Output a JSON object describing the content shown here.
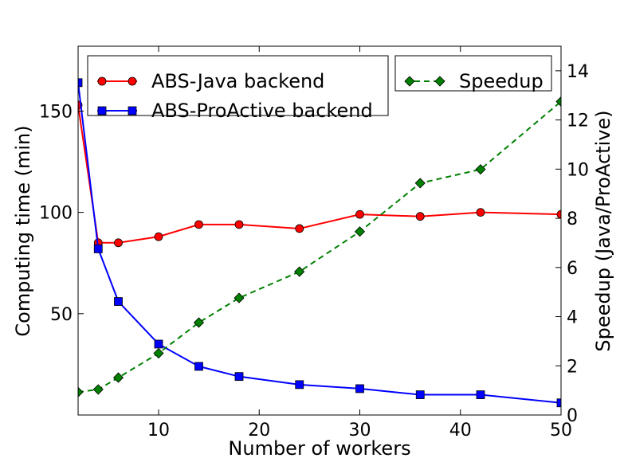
{
  "chart_data": {
    "type": "line",
    "xlabel": "Number of workers",
    "ylabel_left": "Computing time (min)",
    "ylabel_right": "Speedup (Java/ProActive)",
    "xlim": [
      2,
      50
    ],
    "ylim_left": [
      0,
      182
    ],
    "ylim_right": [
      0,
      15
    ],
    "xticks": [
      10,
      20,
      30,
      40,
      50
    ],
    "yticks_left": [
      50,
      100,
      150
    ],
    "yticks_right": [
      0,
      2,
      4,
      6,
      8,
      10,
      12,
      14
    ],
    "grid": false,
    "x": [
      2,
      4,
      6,
      10,
      14,
      18,
      24,
      30,
      36,
      42,
      50
    ],
    "series": [
      {
        "name": "ABS-Java backend",
        "axis": "left",
        "color": "#ff0000",
        "marker": "circle",
        "linestyle": "solid",
        "values": [
          153,
          85,
          85,
          88,
          94,
          94,
          92,
          99,
          98,
          100,
          99
        ]
      },
      {
        "name": "ABS-ProActive backend",
        "axis": "left",
        "color": "#0000ff",
        "marker": "square",
        "linestyle": "solid",
        "values": [
          164,
          82,
          56,
          35,
          24,
          19,
          15,
          13,
          10,
          10,
          6
        ]
      },
      {
        "name": "Speedup",
        "axis": "right",
        "color": "#008000",
        "marker": "diamond",
        "linestyle": "dashed",
        "values": [
          0.93,
          1.04,
          1.52,
          2.51,
          3.76,
          4.76,
          5.83,
          7.46,
          9.43,
          9.99,
          12.75
        ]
      }
    ],
    "legends": [
      {
        "placement": "upper-left",
        "entries": [
          "ABS-Java backend",
          "ABS-ProActive backend"
        ]
      },
      {
        "placement": "upper-right",
        "entries": [
          "Speedup"
        ]
      }
    ]
  }
}
